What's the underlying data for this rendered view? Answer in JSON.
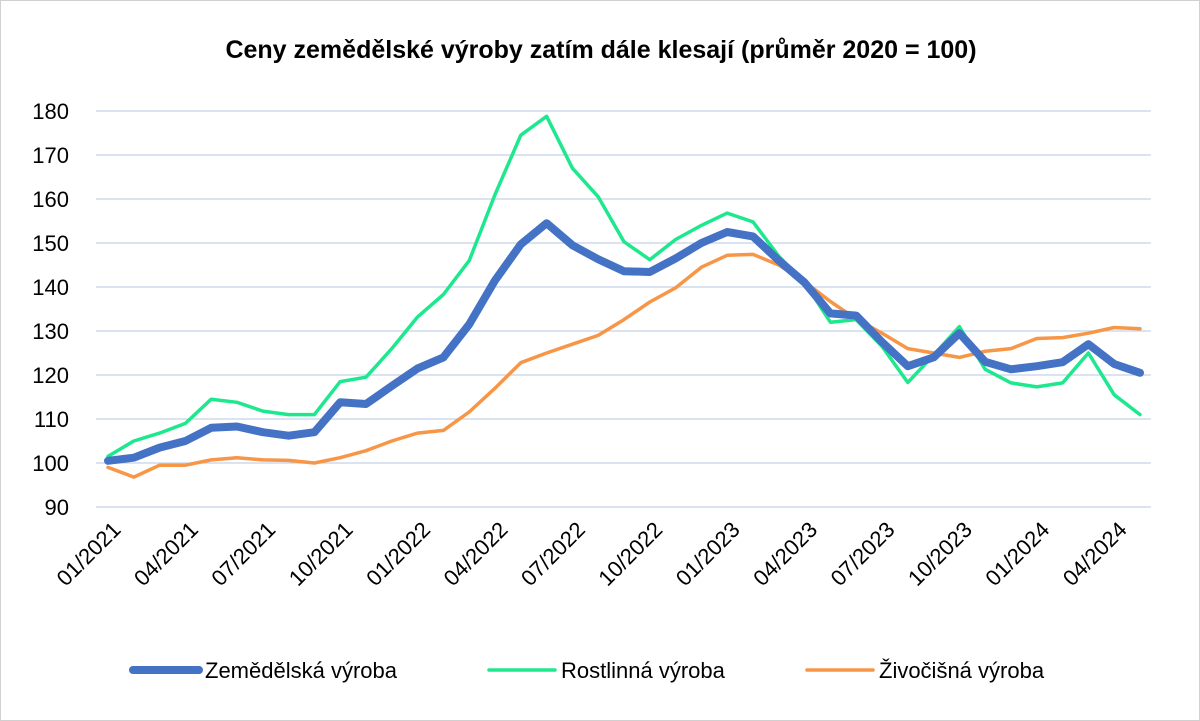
{
  "chart_data": {
    "type": "line",
    "title": "Ceny zemědělské výroby zatím dále klesají (průměr 2020 = 100)",
    "xlabel": "",
    "ylabel": "",
    "ylim": [
      90,
      180
    ],
    "yticks": [
      90,
      100,
      110,
      120,
      130,
      140,
      150,
      160,
      170,
      180
    ],
    "grid": true,
    "legend_position": "bottom",
    "x": [
      "01/2021",
      "02/2021",
      "03/2021",
      "04/2021",
      "05/2021",
      "06/2021",
      "07/2021",
      "08/2021",
      "09/2021",
      "10/2021",
      "11/2021",
      "12/2021",
      "01/2022",
      "02/2022",
      "03/2022",
      "04/2022",
      "05/2022",
      "06/2022",
      "07/2022",
      "08/2022",
      "09/2022",
      "10/2022",
      "11/2022",
      "12/2022",
      "01/2023",
      "02/2023",
      "03/2023",
      "04/2023",
      "05/2023",
      "06/2023",
      "07/2023",
      "08/2023",
      "09/2023",
      "10/2023",
      "11/2023",
      "12/2023",
      "01/2024",
      "02/2024",
      "03/2024",
      "04/2024",
      "05/2024"
    ],
    "x_tick_labels": [
      "01/2021",
      "04/2021",
      "07/2021",
      "10/2021",
      "01/2022",
      "04/2022",
      "07/2022",
      "10/2022",
      "01/2023",
      "04/2023",
      "07/2023",
      "10/2023",
      "01/2024",
      "04/2024"
    ],
    "series": [
      {
        "name": "Zemědělská výroba",
        "color": "#4472c4",
        "values": [
          100.5,
          101.2,
          103.5,
          105,
          108,
          108.3,
          107,
          106.2,
          107,
          113.8,
          113.4,
          117.5,
          121.5,
          124,
          131.5,
          141.5,
          149.7,
          154.5,
          149.5,
          146.3,
          143.6,
          143.4,
          146.5,
          150,
          152.5,
          151.5,
          146,
          141,
          134,
          133.5,
          127.5,
          122,
          124,
          129.5,
          123,
          121.3,
          122,
          122.9,
          127,
          122.5,
          120.5
        ]
      },
      {
        "name": "Rostlinná výroba",
        "color": "#1ee88e",
        "values": [
          101.5,
          105,
          106.8,
          109,
          114.5,
          113.8,
          111.8,
          111,
          111,
          118.5,
          119.5,
          126,
          133.2,
          138.3,
          146,
          161,
          174.5,
          178.8,
          167,
          160.5,
          150.3,
          146.2,
          150.8,
          154,
          156.8,
          154.8,
          147,
          141,
          132,
          132.6,
          126.5,
          118.3,
          124.5,
          131,
          121.3,
          118.2,
          117.3,
          118.2,
          125,
          115.5,
          111
        ]
      },
      {
        "name": "Živočišná výroba",
        "color": "#f79646",
        "values": [
          99,
          96.8,
          99.5,
          99.5,
          100.7,
          101.2,
          100.7,
          100.6,
          100,
          101.2,
          102.8,
          105,
          106.8,
          107.4,
          111.6,
          117,
          122.8,
          125,
          127,
          129,
          132.6,
          136.6,
          139.8,
          144.5,
          147.2,
          147.4,
          145,
          141.2,
          136.7,
          132.7,
          129.5,
          126,
          125,
          124,
          125.4,
          126,
          128.3,
          128.5,
          129.5,
          130.8,
          130.5
        ]
      }
    ]
  }
}
